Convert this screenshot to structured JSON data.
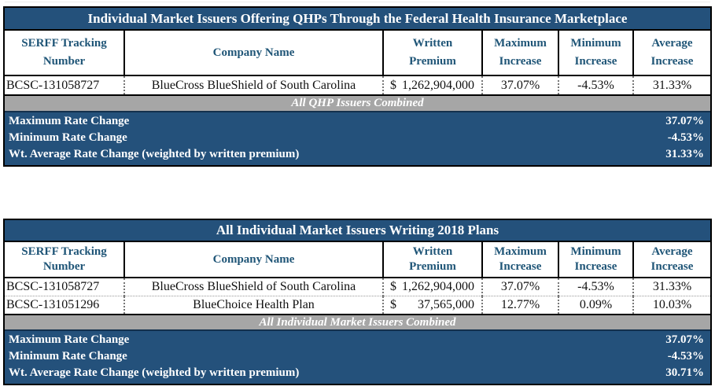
{
  "document": {
    "column_headers": [
      {
        "line1": "SERFF Tracking",
        "line2": "Number"
      },
      {
        "line1": "Company Name",
        "line2": ""
      },
      {
        "line1": "Written",
        "line2": "Premium"
      },
      {
        "line1": "Maximum",
        "line2": "Increase"
      },
      {
        "line1": "Minimum",
        "line2": "Increase"
      },
      {
        "line1": "Average",
        "line2": "Increase"
      }
    ],
    "tables": [
      {
        "title": "Individual Market Issuers Offering QHPs Through the Federal Health Insurance Marketplace",
        "rows": [
          {
            "serff": "BCSC-131058727",
            "company": "BlueCross BlueShield of South Carolina",
            "premium_symbol": "$",
            "premium_amount": "1,262,904,000",
            "max_increase": "37.07%",
            "min_increase": "-4.53%",
            "avg_increase": "31.33%"
          }
        ],
        "combined_band": "All QHP Issuers Combined",
        "summary": [
          {
            "label": "Maximum Rate Change",
            "value": "37.07%"
          },
          {
            "label": "Minimum Rate Change",
            "value": "-4.53%"
          },
          {
            "label": "Wt. Average Rate Change (weighted by written premium)",
            "value": "31.33%"
          }
        ]
      },
      {
        "title": "All Individual Market Issuers Writing 2018 Plans",
        "rows": [
          {
            "serff": "BCSC-131058727",
            "company": "BlueCross BlueShield of South Carolina",
            "premium_symbol": "$",
            "premium_amount": "1,262,904,000",
            "max_increase": "37.07%",
            "min_increase": "-4.53%",
            "avg_increase": "31.33%"
          },
          {
            "serff": "BCSC-131051296",
            "company": "BlueChoice Health Plan",
            "premium_symbol": "$",
            "premium_amount": "37,565,000",
            "max_increase": "12.77%",
            "min_increase": "0.09%",
            "avg_increase": "10.03%"
          }
        ],
        "combined_band": "All Individual Market Issuers Combined",
        "summary": [
          {
            "label": "Maximum Rate Change",
            "value": "37.07%"
          },
          {
            "label": "Minimum Rate Change",
            "value": "-4.53%"
          },
          {
            "label": "Wt. Average Rate Change (weighted by written premium)",
            "value": "30.71%"
          }
        ]
      }
    ],
    "colors": {
      "primary_blue": "#24517B",
      "header_text_blue": "#1F5577",
      "band_gray": "#A6A6A6",
      "border_black": "#000000"
    }
  }
}
